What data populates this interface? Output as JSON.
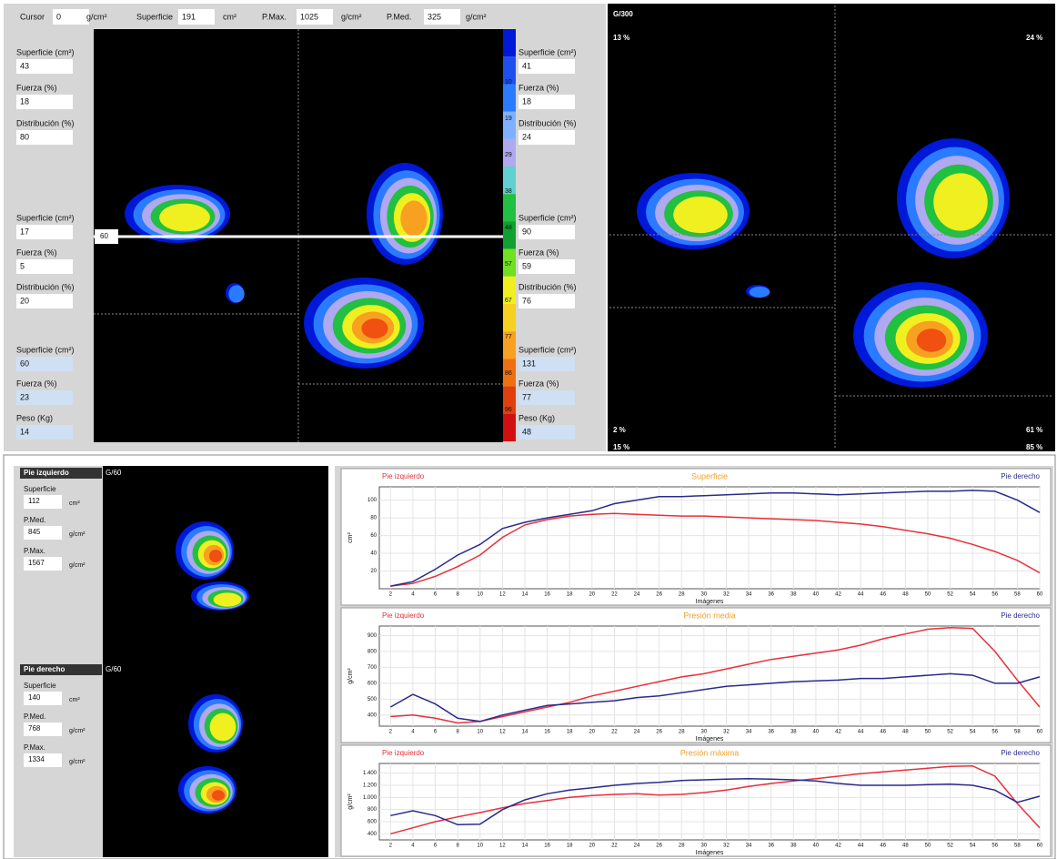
{
  "toolbar": {
    "cursor_label": "Cursor",
    "cursor_value": "0",
    "cursor_unit": "g/cm²",
    "superficie_label": "Superficie",
    "superficie_value": "191",
    "superficie_unit": "cm²",
    "pmax_label": "P.Max.",
    "pmax_value": "1025",
    "pmax_unit": "g/cm²",
    "pmed_label": "P.Med.",
    "pmed_value": "325",
    "pmed_unit": "g/cm²"
  },
  "left_stats": [
    {
      "label": "Superficie (cm²)",
      "value": "43"
    },
    {
      "label": "Fuerza (%)",
      "value": "18"
    },
    {
      "label": "Distribución (%)",
      "value": "80"
    },
    {
      "label": "Superficie (cm²)",
      "value": "17"
    },
    {
      "label": "Fuerza (%)",
      "value": "5"
    },
    {
      "label": "Distribución (%)",
      "value": "20"
    },
    {
      "label": "Superficie (cm²)",
      "value": "60"
    },
    {
      "label": "Fuerza (%)",
      "value": "23"
    },
    {
      "label": "Peso (Kg)",
      "value": "14"
    }
  ],
  "right_stats": [
    {
      "label": "Superficie (cm²)",
      "value": "41"
    },
    {
      "label": "Fuerza (%)",
      "value": "18"
    },
    {
      "label": "Distribución (%)",
      "value": "24"
    },
    {
      "label": "Superficie (cm²)",
      "value": "90"
    },
    {
      "label": "Fuerza (%)",
      "value": "59"
    },
    {
      "label": "Distribución (%)",
      "value": "76"
    },
    {
      "label": "Superficie (cm²)",
      "value": "131"
    },
    {
      "label": "Fuerza (%)",
      "value": "77"
    },
    {
      "label": "Peso (Kg)",
      "value": "48"
    }
  ],
  "cursor_marker": "60",
  "scale_labels": [
    "10",
    "19",
    "29",
    "38",
    "48",
    "57",
    "67",
    "77",
    "86",
    "96"
  ],
  "right_panel": {
    "scale": "G/300",
    "top_left": "13 %",
    "top_right": "24 %",
    "bottom_left": "2 %",
    "bottom_right": "61 %",
    "bottom_left_2": "15 %",
    "bottom_right_2": "85 %"
  },
  "feet": [
    {
      "header": "Pie izquierdo",
      "image_label": "G/60",
      "rows": [
        {
          "label": "Superficie",
          "value": "112",
          "unit": "cm²"
        },
        {
          "label": "P.Med.",
          "value": "845",
          "unit": "g/cm²"
        },
        {
          "label": "P.Max.",
          "value": "1567",
          "unit": "g/cm²"
        }
      ]
    },
    {
      "header": "Pie derecho",
      "image_label": "G/60",
      "rows": [
        {
          "label": "Superficie",
          "value": "140",
          "unit": "cm²"
        },
        {
          "label": "P.Med.",
          "value": "768",
          "unit": "g/cm²"
        },
        {
          "label": "P.Max.",
          "value": "1334",
          "unit": "g/cm²"
        }
      ]
    }
  ],
  "chart_data": [
    {
      "type": "line",
      "title": "Superficie",
      "x_label": "Imágenes",
      "y_label": "cm²",
      "grid": true,
      "x": [
        2,
        4,
        6,
        8,
        10,
        12,
        14,
        16,
        18,
        20,
        22,
        24,
        26,
        28,
        30,
        32,
        34,
        36,
        38,
        40,
        42,
        44,
        46,
        48,
        50,
        52,
        54,
        56,
        58,
        60
      ],
      "xlim": [
        1,
        60
      ],
      "xticks": [
        2,
        4,
        6,
        8,
        10,
        12,
        14,
        16,
        18,
        20,
        22,
        24,
        26,
        28,
        30,
        32,
        34,
        36,
        38,
        40,
        42,
        44,
        46,
        48,
        50,
        52,
        54,
        56,
        58,
        60
      ],
      "ylim": [
        0,
        115
      ],
      "yticks": [
        20,
        40,
        60,
        80,
        100
      ],
      "series": [
        {
          "name": "Pie izquierdo",
          "color": "#e8303a",
          "values": [
            3,
            6,
            14,
            25,
            38,
            58,
            72,
            78,
            82,
            84,
            85,
            84,
            83,
            82,
            82,
            81,
            80,
            79,
            78,
            77,
            75,
            73,
            70,
            66,
            62,
            57,
            50,
            42,
            32,
            18
          ]
        },
        {
          "name": "Pie derecho",
          "color": "#2a2a8c",
          "values": [
            3,
            8,
            22,
            38,
            50,
            68,
            75,
            80,
            84,
            88,
            96,
            100,
            104,
            104,
            105,
            106,
            107,
            108,
            108,
            107,
            106,
            107,
            108,
            109,
            110,
            110,
            111,
            110,
            100,
            86
          ]
        }
      ]
    },
    {
      "type": "line",
      "title": "Presión media",
      "x_label": "Imágenes",
      "y_label": "g/cm²",
      "grid": true,
      "x": [
        2,
        4,
        6,
        8,
        10,
        12,
        14,
        16,
        18,
        20,
        22,
        24,
        26,
        28,
        30,
        32,
        34,
        36,
        38,
        40,
        42,
        44,
        46,
        48,
        50,
        52,
        54,
        56,
        58,
        60
      ],
      "xlim": [
        1,
        60
      ],
      "xticks": [
        2,
        4,
        6,
        8,
        10,
        12,
        14,
        16,
        18,
        20,
        22,
        24,
        26,
        28,
        30,
        32,
        34,
        36,
        38,
        40,
        42,
        44,
        46,
        48,
        50,
        52,
        54,
        56,
        58,
        60
      ],
      "ylim": [
        330,
        960
      ],
      "yticks": [
        400,
        500,
        600,
        700,
        800,
        900
      ],
      "series": [
        {
          "name": "Pie izquierdo",
          "color": "#e8303a",
          "values": [
            390,
            400,
            380,
            350,
            360,
            390,
            420,
            450,
            480,
            520,
            550,
            580,
            610,
            640,
            660,
            690,
            720,
            750,
            770,
            790,
            810,
            840,
            880,
            910,
            940,
            950,
            945,
            800,
            620,
            450
          ]
        },
        {
          "name": "Pie derecho",
          "color": "#2a2a8c",
          "values": [
            450,
            530,
            470,
            380,
            360,
            400,
            430,
            460,
            470,
            480,
            490,
            510,
            520,
            540,
            560,
            580,
            590,
            600,
            610,
            615,
            620,
            630,
            630,
            640,
            650,
            660,
            650,
            600,
            600,
            640
          ]
        }
      ]
    },
    {
      "type": "line",
      "title": "Presión máxima",
      "x_label": "Imágenes",
      "y_label": "g/cm²",
      "grid": true,
      "x": [
        2,
        4,
        6,
        8,
        10,
        12,
        14,
        16,
        18,
        20,
        22,
        24,
        26,
        28,
        30,
        32,
        34,
        36,
        38,
        40,
        42,
        44,
        46,
        48,
        50,
        52,
        54,
        56,
        58,
        60
      ],
      "xlim": [
        1,
        60
      ],
      "xticks": [
        2,
        4,
        6,
        8,
        10,
        12,
        14,
        16,
        18,
        20,
        22,
        24,
        26,
        28,
        30,
        32,
        34,
        36,
        38,
        40,
        42,
        44,
        46,
        48,
        50,
        52,
        54,
        56,
        58,
        60
      ],
      "ylim": [
        300,
        1560
      ],
      "yticks": [
        400,
        600,
        800,
        {
          "value": 1000,
          "label": "1.000"
        },
        {
          "value": 1200,
          "label": "1.200"
        },
        {
          "value": 1400,
          "label": "1.400"
        }
      ],
      "series": [
        {
          "name": "Pie izquierdo",
          "color": "#e8303a",
          "values": [
            400,
            500,
            600,
            680,
            750,
            830,
            900,
            950,
            1000,
            1030,
            1050,
            1060,
            1040,
            1050,
            1080,
            1120,
            1180,
            1230,
            1270,
            1310,
            1350,
            1390,
            1420,
            1450,
            1480,
            1510,
            1520,
            1350,
            900,
            500
          ]
        },
        {
          "name": "Pie derecho",
          "color": "#2a2a8c",
          "values": [
            700,
            780,
            700,
            550,
            560,
            800,
            960,
            1060,
            1120,
            1160,
            1200,
            1230,
            1250,
            1280,
            1290,
            1300,
            1310,
            1300,
            1290,
            1270,
            1230,
            1200,
            1200,
            1200,
            1210,
            1220,
            1200,
            1120,
            920,
            1020
          ]
        }
      ]
    }
  ]
}
